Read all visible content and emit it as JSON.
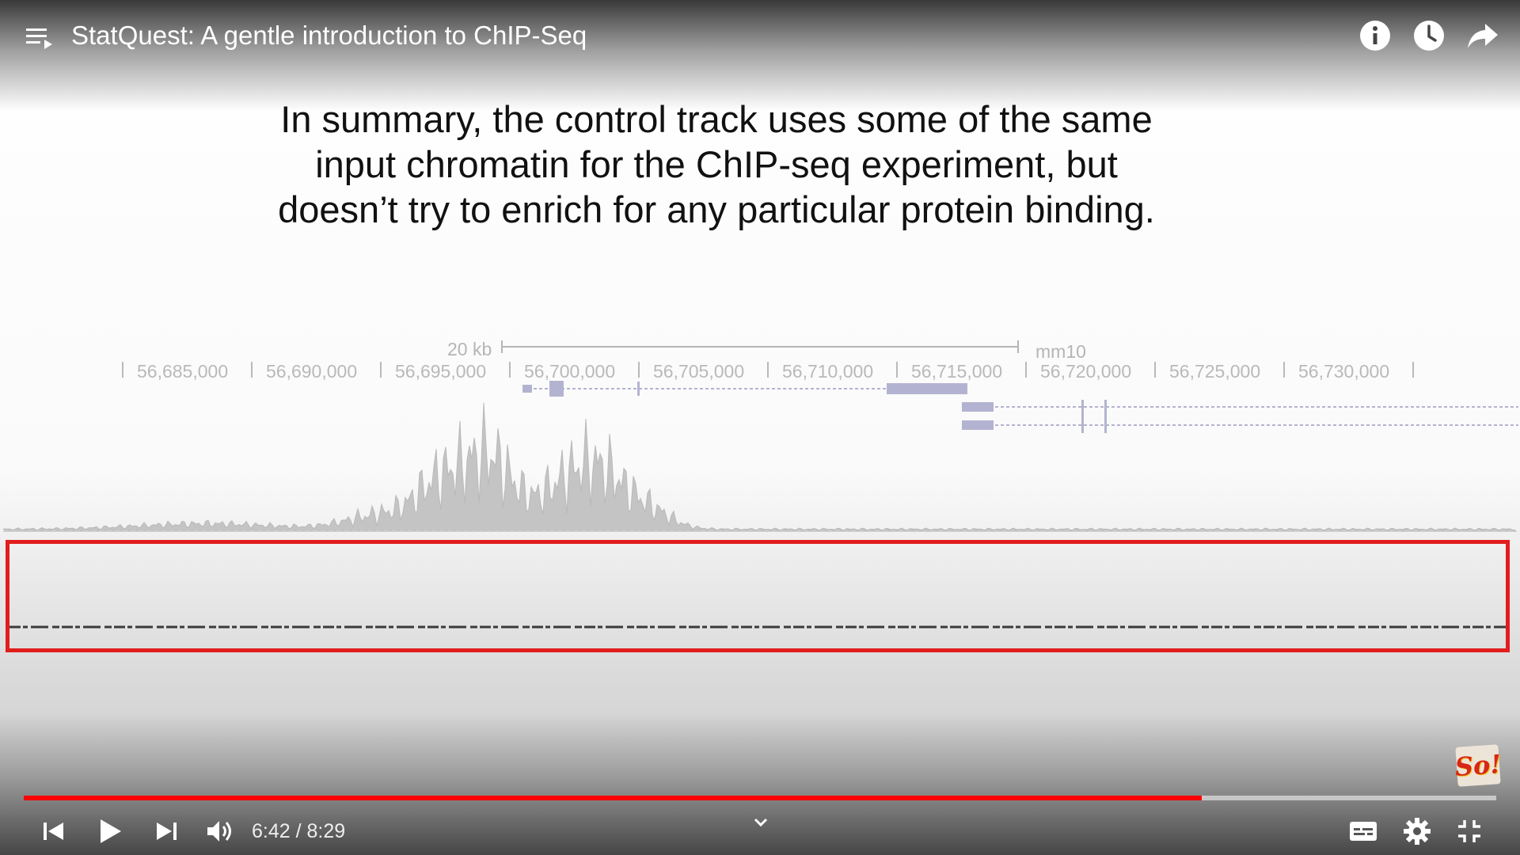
{
  "player": {
    "title": "StatQuest: A gentle introduction to ChIP-Seq",
    "current_time": "6:42",
    "separator": "/",
    "duration": "8:29",
    "progress_fraction": 0.8,
    "accent_color": "#ff0000"
  },
  "top_actions": [
    {
      "icon": "info-icon"
    },
    {
      "icon": "clock-icon"
    },
    {
      "icon": "share-icon"
    }
  ],
  "controls": [
    {
      "icon": "previous-icon"
    },
    {
      "icon": "play-icon"
    },
    {
      "icon": "next-icon"
    },
    {
      "icon": "volume-icon"
    },
    {
      "icon": "chevron-down-icon"
    },
    {
      "icon": "subtitles-icon"
    },
    {
      "icon": "settings-icon"
    },
    {
      "icon": "exit-fullscreen-icon"
    }
  ],
  "slide": {
    "caption_lines": [
      "In summary, the control track uses some of the same",
      "input chromatin for the ChIP-seq experiment, but",
      "doesn’t try to enrich for any particular protein binding."
    ],
    "scale_label": "20 kb",
    "assembly": "mm10",
    "coordinates": [
      "56,685,000",
      "56,690,000",
      "56,695,000",
      "56,700,000",
      "56,705,000",
      "56,710,000",
      "56,715,000",
      "56,720,000",
      "56,725,000",
      "56,730,000"
    ],
    "highlight_color": "#e11d1d"
  },
  "channel_logo": "So!"
}
